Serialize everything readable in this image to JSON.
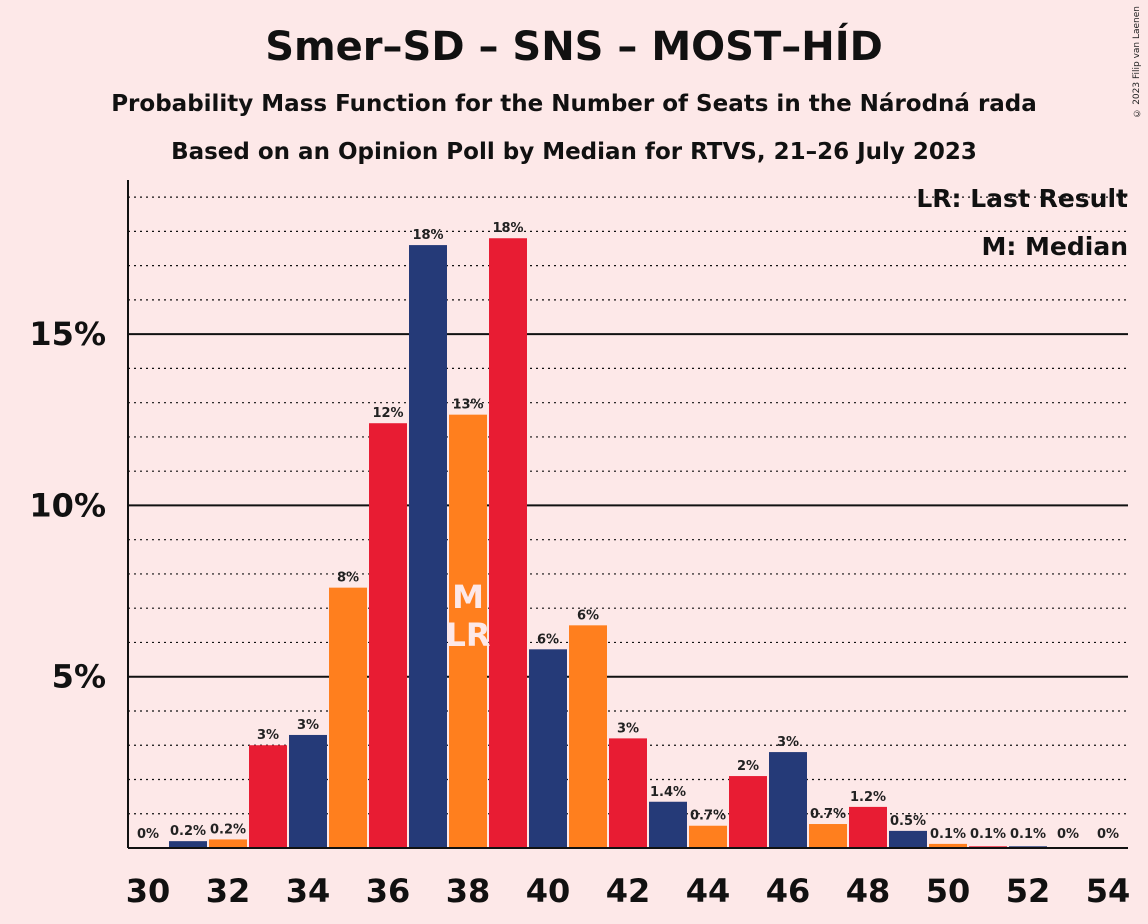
{
  "header": {
    "title": "Smer–SD – SNS – MOST–HÍD",
    "subtitle1": "Probability Mass Function for the Number of Seats in the Národná rada",
    "subtitle2": "Based on an Opinion Poll by Median for RTVS, 21–26 July 2023",
    "copyright": "© 2023 Filip van Laenen"
  },
  "legend": {
    "last_result": "LR: Last Result",
    "median": "M: Median"
  },
  "colors": {
    "background": "#fde8e8",
    "navy": "#253a78",
    "red": "#e81c33",
    "orange": "#ff7f1e"
  },
  "chart_data": {
    "type": "bar",
    "x": [
      30,
      31,
      32,
      33,
      34,
      35,
      36,
      37,
      38,
      39,
      40,
      41,
      42,
      43,
      44,
      45,
      46,
      47,
      48,
      49,
      50,
      51,
      52,
      53,
      54
    ],
    "values": [
      0,
      0.2,
      0.25,
      3.0,
      3.3,
      7.6,
      12.4,
      17.6,
      12.65,
      17.8,
      5.8,
      6.5,
      3.2,
      1.35,
      0.65,
      2.1,
      2.8,
      0.7,
      1.2,
      0.5,
      0.12,
      0.05,
      0.05,
      0.02,
      0.01
    ],
    "labels": [
      "0%",
      "0.2%",
      "0.2%",
      "3%",
      "3%",
      "8%",
      "12%",
      "18%",
      "13%",
      "18%",
      "6%",
      "6%",
      "3%",
      "1.4%",
      "0.7%",
      "2%",
      "3%",
      "0.7%",
      "1.2%",
      "0.5%",
      "0.1%",
      "0.1%",
      "0.1%",
      "0%",
      "0%"
    ],
    "bar_colors": [
      "navy",
      "navy",
      "orange",
      "red",
      "navy",
      "orange",
      "red",
      "navy",
      "orange",
      "red",
      "navy",
      "orange",
      "red",
      "navy",
      "orange",
      "red",
      "navy",
      "orange",
      "red",
      "navy",
      "orange",
      "red",
      "navy",
      "orange",
      "red"
    ],
    "x_ticks": [
      30,
      32,
      34,
      36,
      38,
      40,
      42,
      44,
      46,
      48,
      50,
      52,
      54
    ],
    "y_ticks": [
      5,
      10,
      15
    ],
    "y_tick_labels": [
      "5%",
      "10%",
      "15%"
    ],
    "ylim": [
      0,
      19.5
    ],
    "minor_grid_step": 1,
    "median": 38,
    "last_result": 38,
    "median_marker": "M",
    "last_result_marker": "LR"
  }
}
